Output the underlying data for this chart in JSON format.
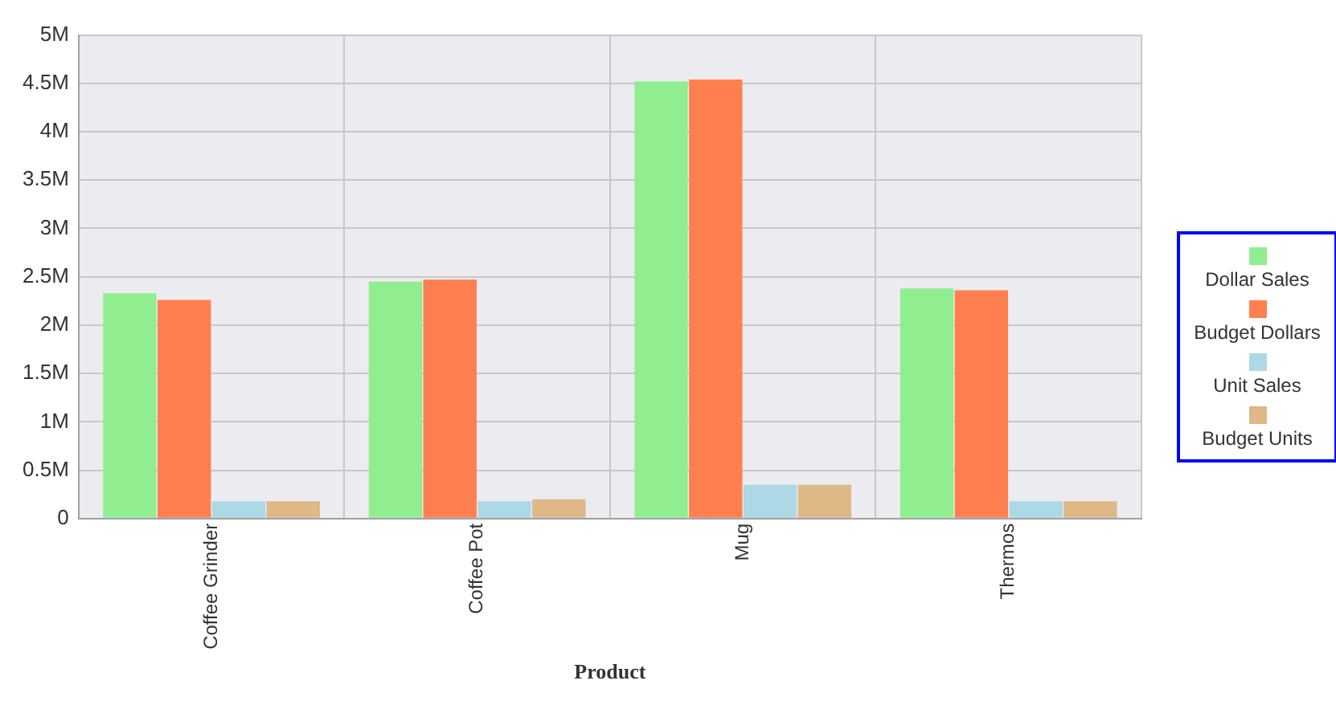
{
  "chart_data": {
    "type": "bar",
    "xlabel": "Product",
    "categories": [
      "Coffee Grinder",
      "Coffee Pot",
      "Mug",
      "Thermos"
    ],
    "series": [
      {
        "name": "Dollar Sales",
        "color": "#90ee90",
        "values": [
          2330000,
          2450000,
          4520000,
          2380000
        ]
      },
      {
        "name": "Budget Dollars",
        "color": "#ff7f50",
        "values": [
          2260000,
          2470000,
          4540000,
          2360000
        ]
      },
      {
        "name": "Unit Sales",
        "color": "#add8e6",
        "values": [
          180000,
          180000,
          350000,
          180000
        ]
      },
      {
        "name": "Budget Units",
        "color": "#deb887",
        "values": [
          180000,
          200000,
          350000,
          180000
        ]
      }
    ],
    "ylim": [
      0,
      5000000
    ],
    "yticks": [
      {
        "value": 0,
        "label": "0"
      },
      {
        "value": 500000,
        "label": "0.5M"
      },
      {
        "value": 1000000,
        "label": "1M"
      },
      {
        "value": 1500000,
        "label": "1.5M"
      },
      {
        "value": 2000000,
        "label": "2M"
      },
      {
        "value": 2500000,
        "label": "2.5M"
      },
      {
        "value": 3000000,
        "label": "3M"
      },
      {
        "value": 3500000,
        "label": "3.5M"
      },
      {
        "value": 4000000,
        "label": "4M"
      },
      {
        "value": 4500000,
        "label": "4.5M"
      },
      {
        "value": 5000000,
        "label": "5M"
      }
    ],
    "grid": true,
    "legend": "right"
  }
}
